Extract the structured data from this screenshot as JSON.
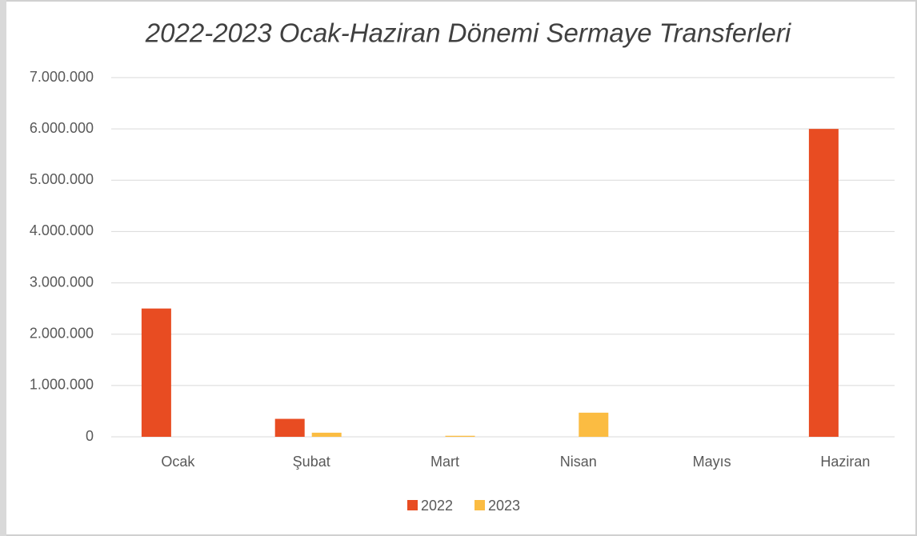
{
  "chart_data": {
    "type": "bar",
    "title": "2022-2023 Ocak-Haziran Dönemi Sermaye Transferleri",
    "categories": [
      "Ocak",
      "Şubat",
      "Mart",
      "Nisan",
      "Mayıs",
      "Haziran"
    ],
    "series": [
      {
        "name": "2022",
        "color": "#e84c22",
        "values": [
          2500000,
          350000,
          0,
          0,
          0,
          6000000
        ]
      },
      {
        "name": "2023",
        "color": "#fbbc42",
        "values": [
          0,
          80000,
          20000,
          470000,
          0,
          0
        ]
      }
    ],
    "ylim": [
      0,
      7000000
    ],
    "yticks": [
      0,
      {
        "value": 1000000,
        "label": "1.000.000"
      },
      {
        "value": 2000000,
        "label": "2.000.000"
      },
      {
        "value": 3000000,
        "label": "3.000.000"
      },
      {
        "value": 4000000,
        "label": "4.000.000"
      },
      {
        "value": 5000000,
        "label": "5.000.000"
      },
      {
        "value": 6000000,
        "label": "6.000.000"
      },
      {
        "value": 7000000,
        "label": "7.000.000"
      }
    ],
    "grid": true,
    "legend": "bottom"
  }
}
